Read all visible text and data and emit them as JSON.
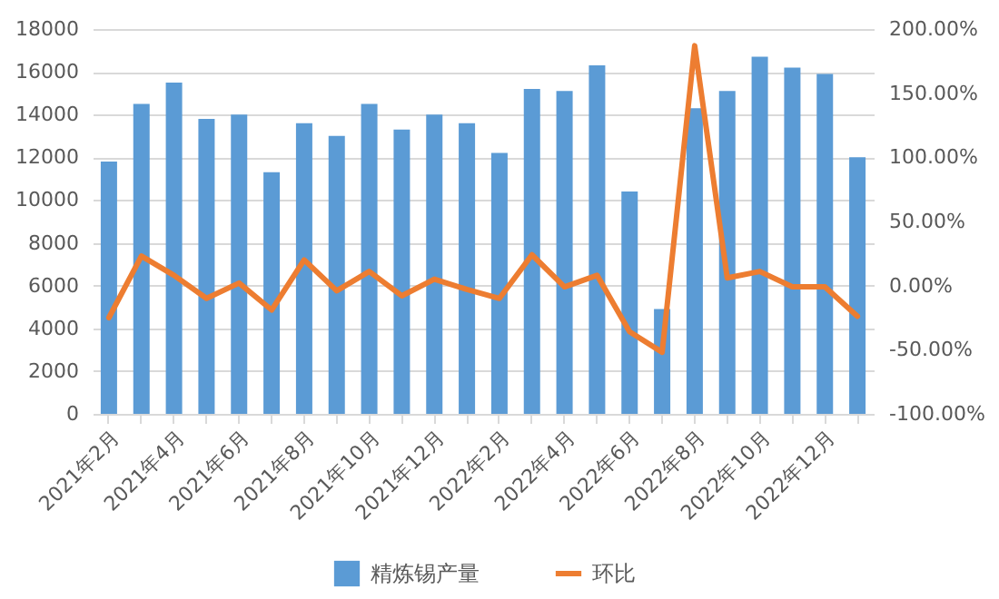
{
  "chart_data": {
    "type": "bar",
    "categories": [
      "2021年2月",
      null,
      "2021年4月",
      null,
      "2021年6月",
      null,
      "2021年8月",
      null,
      "2021年10月",
      null,
      "2021年12月",
      null,
      "2022年2月",
      null,
      "2022年4月",
      null,
      "2022年6月",
      null,
      "2022年8月",
      null,
      "2022年10月",
      null,
      "2022年12月",
      null
    ],
    "series": [
      {
        "name": "精炼锡产量",
        "color": "#5b9bd5",
        "values": [
          11800,
          14500,
          15500,
          13800,
          14000,
          11300,
          13600,
          13000,
          14500,
          13300,
          14000,
          13600,
          12200,
          15200,
          15100,
          16300,
          10400,
          4900,
          14300,
          15100,
          16700,
          16200,
          15900,
          12000
        ]
      },
      {
        "name": "环比",
        "type": "line",
        "axis": "y2",
        "color": "#ed7d31",
        "values": [
          -25,
          23,
          8,
          -10,
          2,
          -19,
          20,
          -4,
          11,
          -8,
          5,
          -3,
          -10,
          24,
          -1,
          8,
          -36,
          -52,
          187,
          6,
          11,
          -1,
          -1,
          -24
        ]
      }
    ],
    "ylim": [
      0,
      18000
    ],
    "yticks": [
      0,
      2000,
      4000,
      6000,
      8000,
      10000,
      12000,
      14000,
      16000,
      18000
    ],
    "y2lim": [
      -100,
      200
    ],
    "y2ticks": [
      {
        "value": -100,
        "label": "-100.00%"
      },
      {
        "value": -50,
        "label": "-50.00%"
      },
      {
        "value": 0,
        "label": "0.00%"
      },
      {
        "value": 50,
        "label": "50.00%"
      },
      {
        "value": 100,
        "label": "100.00%"
      },
      {
        "value": 150,
        "label": "150.00%"
      },
      {
        "value": 200,
        "label": "200.00%"
      }
    ],
    "grid": "y",
    "legend": "bottom",
    "marker": "none",
    "line_style": "solid"
  }
}
